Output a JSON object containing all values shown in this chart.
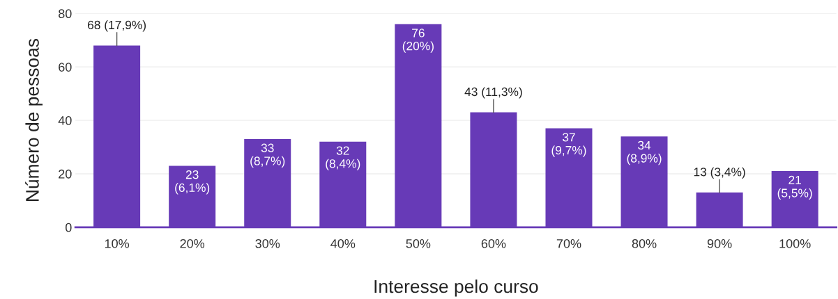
{
  "chart_data": {
    "type": "bar",
    "xlabel": "Interesse pelo curso",
    "ylabel": "Número de pessoas",
    "categories": [
      "10%",
      "20%",
      "30%",
      "40%",
      "50%",
      "60%",
      "70%",
      "80%",
      "90%",
      "100%"
    ],
    "values": [
      68,
      23,
      33,
      32,
      76,
      43,
      37,
      34,
      13,
      21
    ],
    "value_labels": [
      "68 (17,9%)",
      "23\n(6,1%)",
      "33\n(8,7%)",
      "32\n(8,4%)",
      "76\n(20%)",
      "43 (11,3%)",
      "37\n(9,7%)",
      "34\n(8,9%)",
      "13 (3,4%)",
      "21\n(5,5%)"
    ],
    "color": "#673ab7",
    "ylim": [
      0,
      80
    ],
    "yticks": [
      0,
      20,
      40,
      60,
      80
    ],
    "grid": "y"
  }
}
